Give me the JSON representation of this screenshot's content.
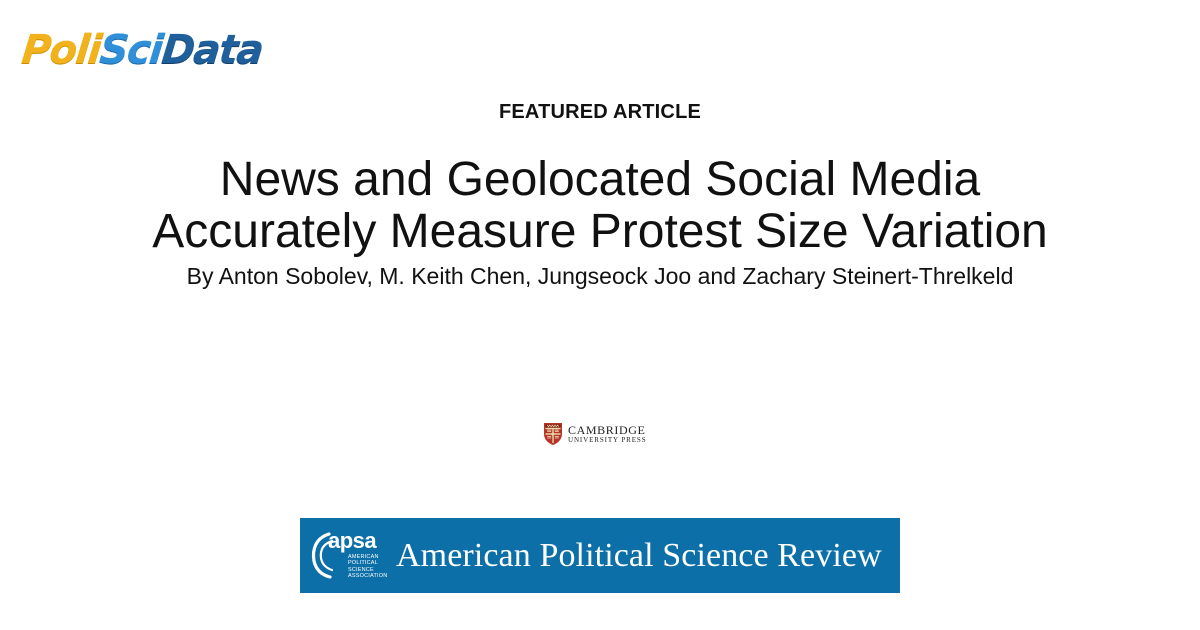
{
  "logo": {
    "part1": "Poli",
    "part2": "Sci",
    "part3": "Data"
  },
  "kicker": "FEATURED ARTICLE",
  "title": {
    "line1": "News and Geolocated Social Media",
    "line2": "Accurately Measure Protest Size Variation"
  },
  "authors": "By Anton Sobolev, M. Keith Chen, Jungseock Joo and Zachary Steinert-Threlkeld",
  "publisher": {
    "name": "CAMBRIDGE",
    "subtitle": "UNIVERSITY PRESS"
  },
  "journal": {
    "org_abbrev": "apsa",
    "org_lines": [
      "AMERICAN",
      "POLITICAL",
      "SCIENCE",
      "ASSOCIATION"
    ],
    "name": "American Political Science Review"
  },
  "colors": {
    "logo_yellow": "#f2b21b",
    "logo_light_blue": "#2f8fd8",
    "logo_dark_blue": "#1f5f9c",
    "banner_blue": "#0c6fa8",
    "cambridge_red": "#b5352a"
  },
  "icons": {
    "logo": "polyscidata-logo",
    "publisher": "cambridge-shield-icon",
    "journal": "apsa-arc-icon"
  }
}
